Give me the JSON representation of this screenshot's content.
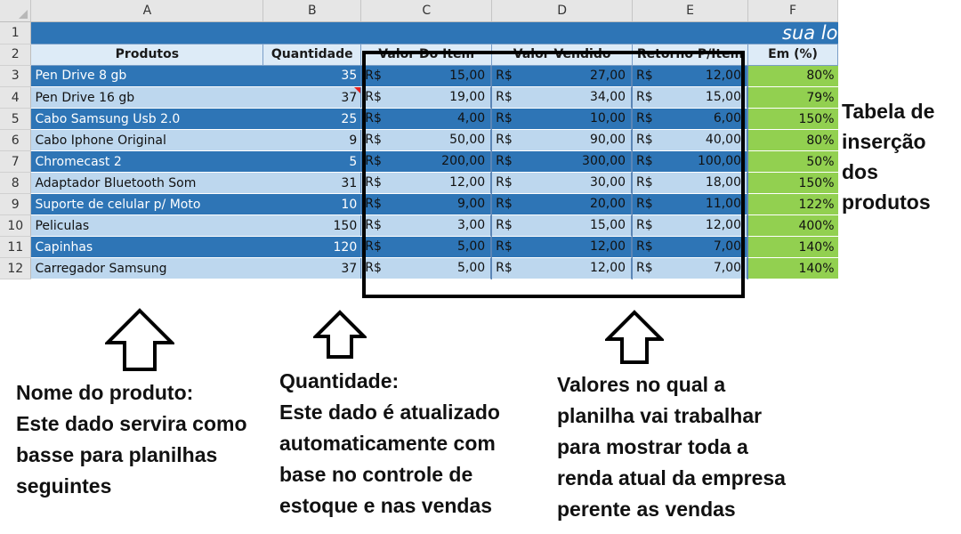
{
  "sheet": {
    "columns": [
      "A",
      "B",
      "C",
      "D",
      "E",
      "F"
    ],
    "rows": [
      "1",
      "2",
      "3",
      "4",
      "5",
      "6",
      "7",
      "8",
      "9",
      "10",
      "11",
      "12"
    ],
    "banner_text": "sua lo",
    "headers": {
      "produtos": "Produtos",
      "quantidade": "Quantidade",
      "valor_item": "Valor Do Item",
      "valor_vendido": "Valor Vendido",
      "retorno": "Retorno P/Item",
      "em_pct": "Em (%)"
    },
    "currency": "R$",
    "items": [
      {
        "produto": "Pen Drive 8 gb",
        "qtd": "35",
        "valor": "15,00",
        "vendido": "27,00",
        "retorno": "12,00",
        "pct": "80%"
      },
      {
        "produto": "Pen Drive 16 gb",
        "qtd": "37",
        "valor": "19,00",
        "vendido": "34,00",
        "retorno": "15,00",
        "pct": "79%"
      },
      {
        "produto": "Cabo Samsung Usb 2.0",
        "qtd": "25",
        "valor": "4,00",
        "vendido": "10,00",
        "retorno": "6,00",
        "pct": "150%"
      },
      {
        "produto": "Cabo Iphone Original",
        "qtd": "9",
        "valor": "50,00",
        "vendido": "90,00",
        "retorno": "40,00",
        "pct": "80%"
      },
      {
        "produto": "Chromecast 2",
        "qtd": "5",
        "valor": "200,00",
        "vendido": "300,00",
        "retorno": "100,00",
        "pct": "50%"
      },
      {
        "produto": "Adaptador Bluetooth Som",
        "qtd": "31",
        "valor": "12,00",
        "vendido": "30,00",
        "retorno": "18,00",
        "pct": "150%"
      },
      {
        "produto": "Suporte de celular p/ Moto",
        "qtd": "10",
        "valor": "9,00",
        "vendido": "20,00",
        "retorno": "11,00",
        "pct": "122%"
      },
      {
        "produto": "Peliculas",
        "qtd": "150",
        "valor": "3,00",
        "vendido": "15,00",
        "retorno": "12,00",
        "pct": "400%"
      },
      {
        "produto": "Capinhas",
        "qtd": "120",
        "valor": "5,00",
        "vendido": "12,00",
        "retorno": "7,00",
        "pct": "140%"
      },
      {
        "produto": "Carregador Samsung",
        "qtd": "37",
        "valor": "5,00",
        "vendido": "12,00",
        "retorno": "7,00",
        "pct": "140%"
      }
    ]
  },
  "annotations": {
    "tabela": "Tabela de\ninserção\ndos\nprodutos",
    "nome": "Nome do produto:\nEste dado servira como\nbasse para planilhas\nseguintes",
    "quantidade": "Quantidade:\nEste dado é atualizado\nautomaticamente com\nbase no controle de\nestoque e nas vendas",
    "valores": "Valores no qual a\nplanilha vai trabalhar\npara mostrar toda a\nrenda atual da empresa\nperente as vendas"
  },
  "colors": {
    "banner": "#2e75b6",
    "row_dark": "#2e75b6",
    "row_light": "#bdd7ee",
    "header_fill": "#ddebf7",
    "percent_fill": "#92d050"
  },
  "icons": [
    "up-arrow-icon"
  ]
}
